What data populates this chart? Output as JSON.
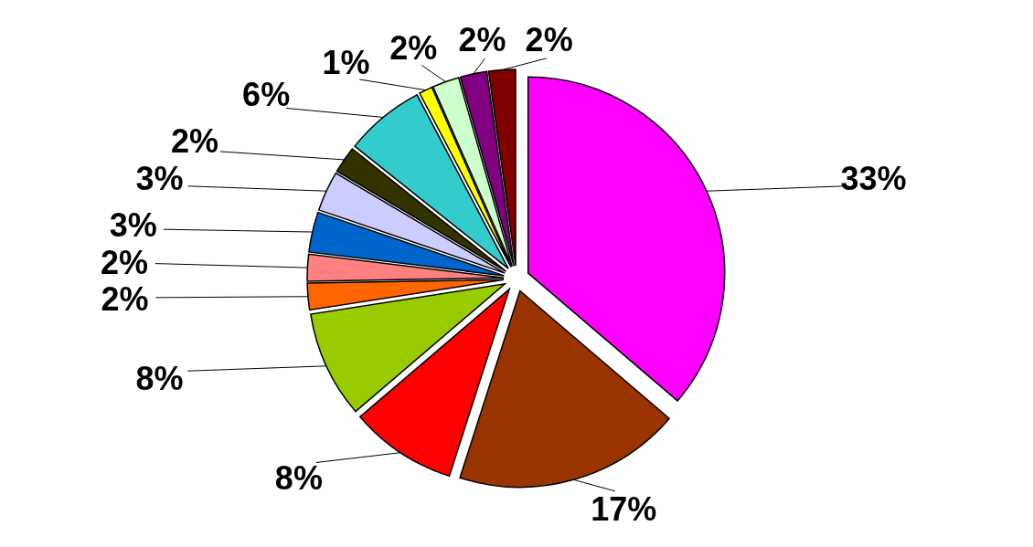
{
  "chart_data": {
    "type": "pie",
    "categories": [
      null,
      null,
      null,
      null,
      null,
      null,
      null,
      null,
      null,
      null,
      null,
      null,
      null,
      null
    ],
    "values": [
      33,
      17,
      8,
      8,
      2,
      2,
      3,
      3,
      2,
      6,
      1,
      2,
      2,
      2
    ],
    "value_labels": [
      "33%",
      "17%",
      "8%",
      "8%",
      "2%",
      "2%",
      "3%",
      "3%",
      "2%",
      "6%",
      "1%",
      "2%",
      "2%",
      "2%"
    ],
    "colors": [
      "#ff00ff",
      "#993300",
      "#ff0000",
      "#99cc00",
      "#ff6600",
      "#ff8080",
      "#0066cc",
      "#ccccff",
      "#333300",
      "#33cccc",
      "#ffff00",
      "#ccffcc",
      "#800080",
      "#800000"
    ]
  }
}
